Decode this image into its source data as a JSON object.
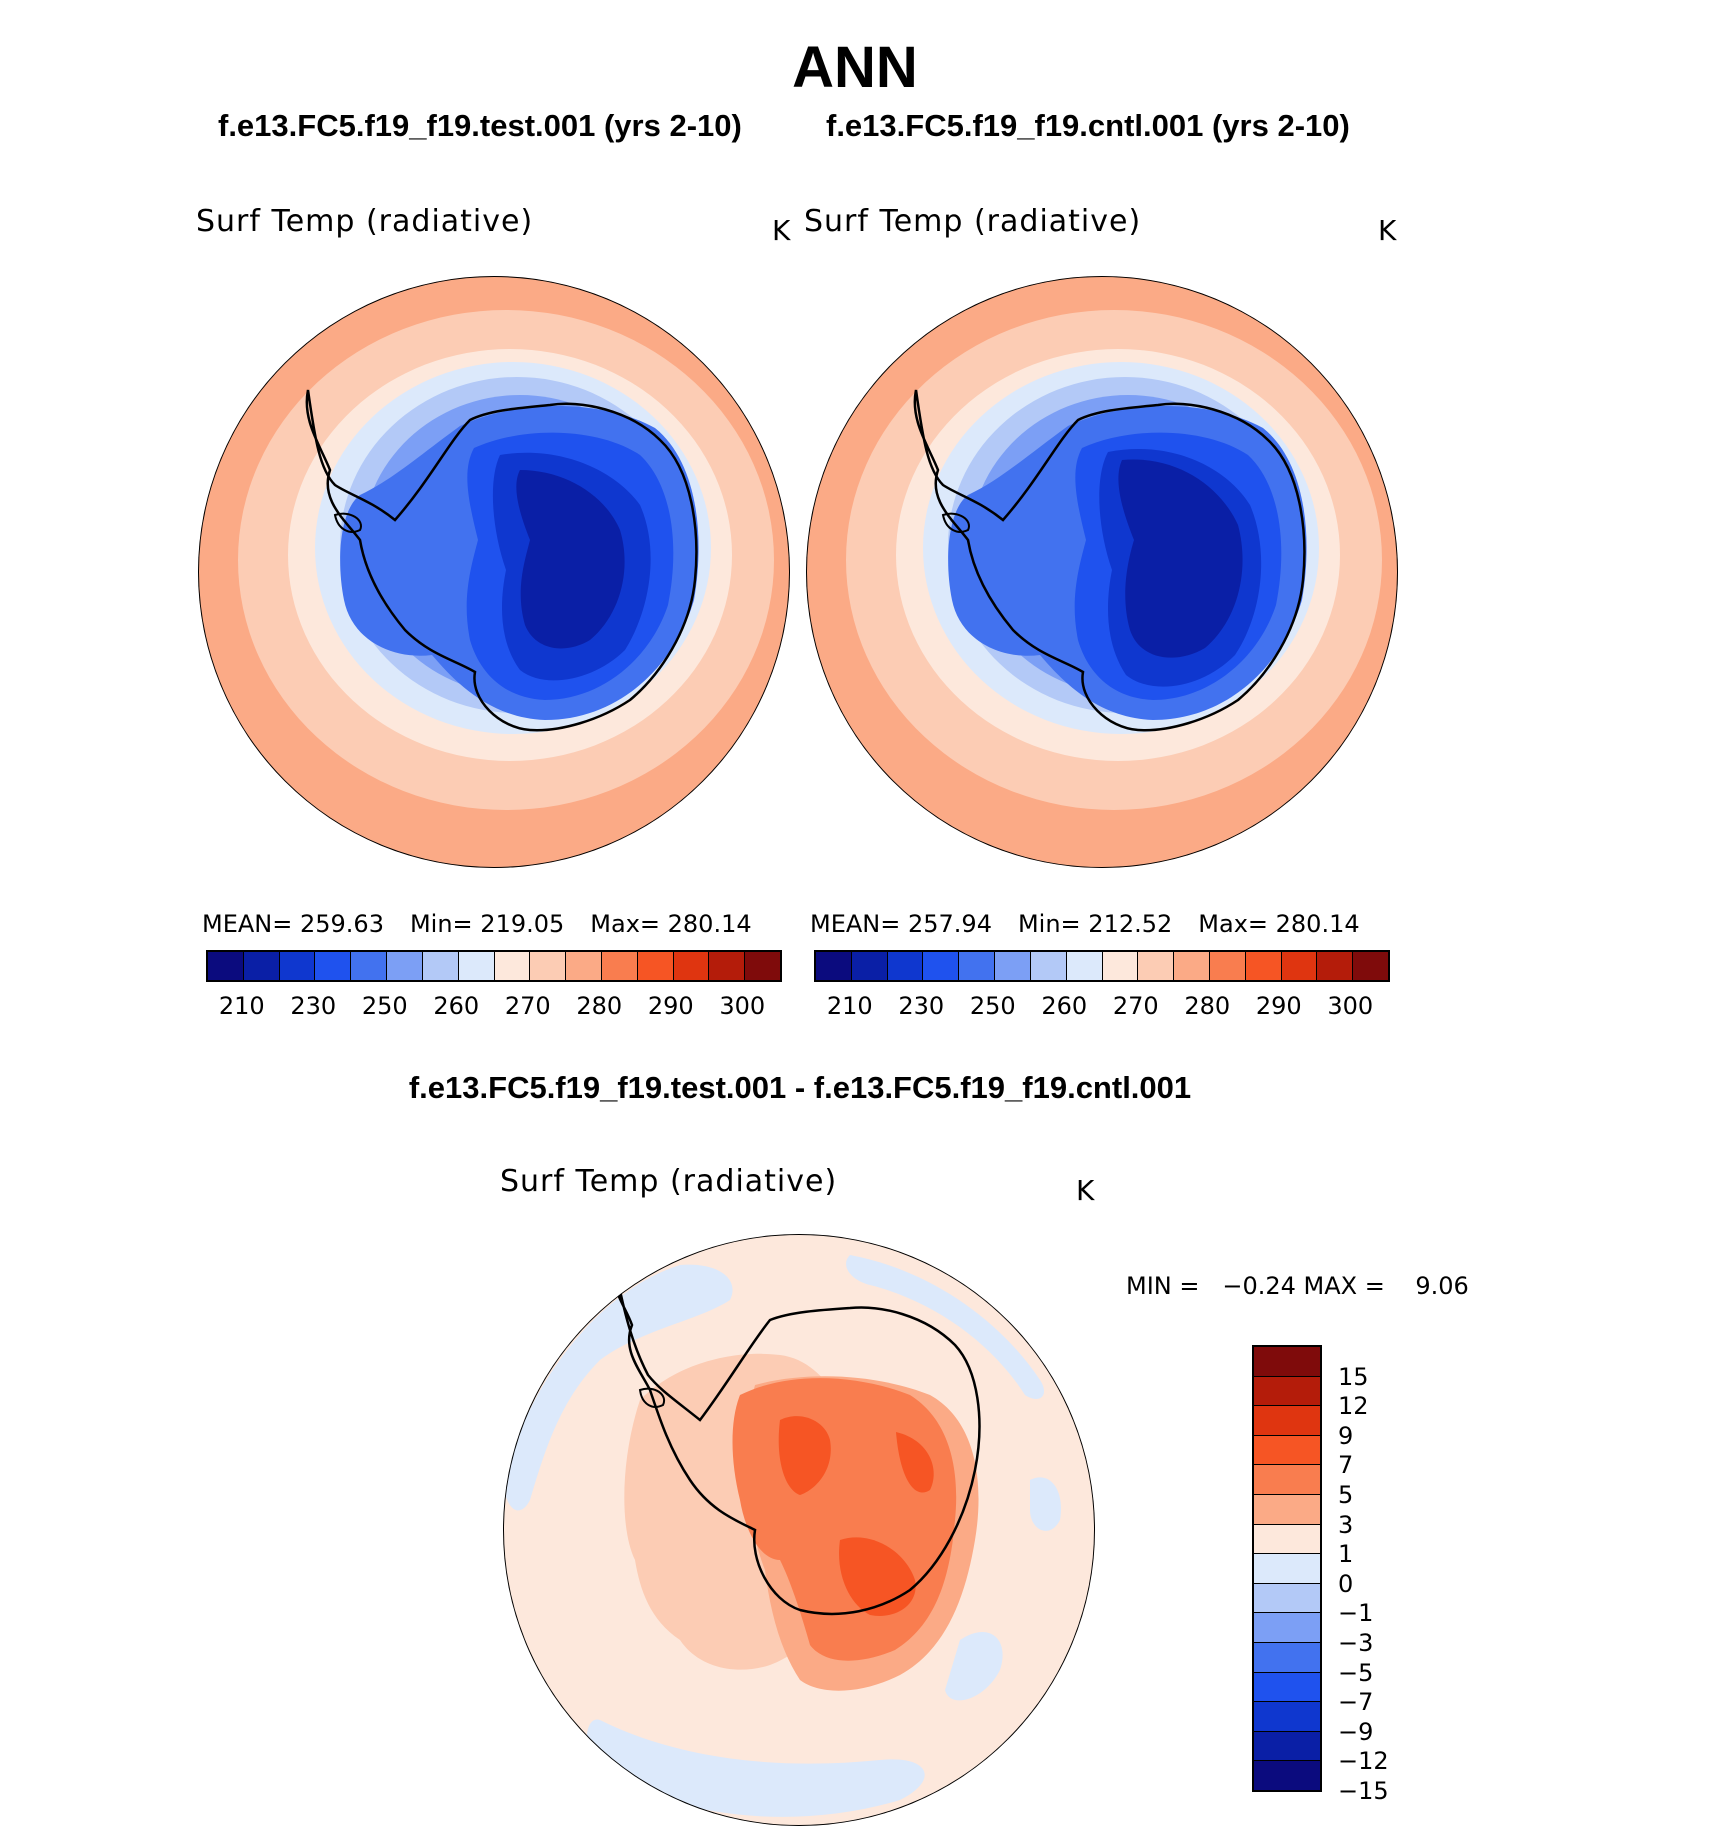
{
  "title": "ANN",
  "case_test": "f.e13.FC5.f19_f19.test.001 (yrs 2-10)",
  "case_cntl": "f.e13.FC5.f19_f19.cntl.001 (yrs 2-10)",
  "diff_title": "f.e13.FC5.f19_f19.test.001 - f.e13.FC5.f19_f19.cntl.001",
  "panels": {
    "test": {
      "variable": "Surf Temp (radiative)",
      "units": "K",
      "mean_text": "MEAN= 259.63",
      "min_text": "Min= 219.05",
      "max_text": "Max= 280.14"
    },
    "cntl": {
      "variable": "Surf Temp (radiative)",
      "units": "K",
      "mean_text": "MEAN= 257.94",
      "min_text": "Min= 212.52",
      "max_text": "Max= 280.14"
    },
    "diff": {
      "variable": "Surf Temp (radiative)",
      "units": "K",
      "minmax_text": "MIN =   −0.24 MAX =    9.06"
    }
  },
  "abs_colorbar": {
    "colors": [
      "#0b0b7e",
      "#0a1fa6",
      "#0f37cf",
      "#1f52ee",
      "#4272ef",
      "#7c9ff5",
      "#b3c9f7",
      "#dce9fb",
      "#fde8dc",
      "#fcccb4",
      "#fbaa86",
      "#f97d4f",
      "#f65524",
      "#df3510",
      "#b41c0a",
      "#7f0b0b"
    ],
    "ticks": [
      "210",
      "230",
      "250",
      "260",
      "270",
      "280",
      "290",
      "300"
    ]
  },
  "diff_colorbar": {
    "colors": [
      "#7f0b0b",
      "#b41c0a",
      "#df3510",
      "#f65524",
      "#f97d4f",
      "#fbaa86",
      "#fde8dc",
      "#dce9fb",
      "#b3c9f7",
      "#7c9ff5",
      "#4272ef",
      "#1f52ee",
      "#0f37cf",
      "#0a1fa6",
      "#0b0b7e"
    ],
    "ticks": [
      "15",
      "12",
      "9",
      "7",
      "5",
      "3",
      "1",
      "0",
      "−1",
      "−3",
      "−5",
      "−7",
      "−9",
      "−12",
      "−15"
    ]
  }
}
